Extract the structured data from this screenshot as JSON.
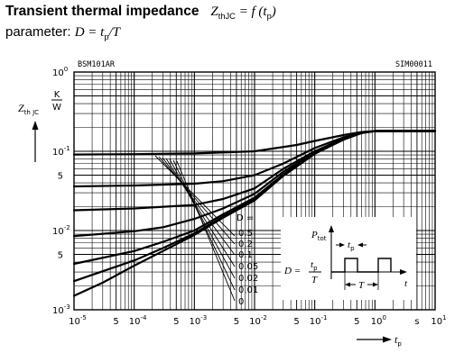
{
  "header": {
    "title": "Transient thermal impedance",
    "formula_lhs": "Z",
    "formula_lhs_sub": "thJC",
    "formula_rhs": " = f (t",
    "formula_rhs_sub": "p",
    "formula_close": ")",
    "param_label": "parameter:",
    "param_formula": "D = t",
    "param_formula_sub": "p",
    "param_formula_tail": "/T"
  },
  "chart_data": {
    "type": "line",
    "device_label": "BSM101AR",
    "figure_id": "SIM00011",
    "xscale": "log",
    "yscale": "log",
    "xlim": [
      1e-05,
      10
    ],
    "ylim": [
      0.001,
      1
    ],
    "x_unit": "s",
    "x_symbol": "t",
    "x_symbol_sub": "p",
    "y_symbol": "Z",
    "y_symbol_sub": "th JC",
    "y_unit_num": "K",
    "y_unit_den": "W",
    "x_ticks": [
      {
        "base": "10",
        "exp": "-5",
        "value": 1e-05
      },
      {
        "base": "5",
        "exp": "",
        "value": 5e-05
      },
      {
        "base": "10",
        "exp": "-4",
        "value": 0.0001
      },
      {
        "base": "5",
        "exp": "",
        "value": 0.0005
      },
      {
        "base": "10",
        "exp": "-3",
        "value": 0.001
      },
      {
        "base": "5",
        "exp": "",
        "value": 0.005
      },
      {
        "base": "10",
        "exp": "-2",
        "value": 0.01
      },
      {
        "base": "5",
        "exp": "",
        "value": 0.05
      },
      {
        "base": "10",
        "exp": "-1",
        "value": 0.1
      },
      {
        "base": "5",
        "exp": "",
        "value": 0.5
      },
      {
        "base": "10",
        "exp": "0",
        "value": 1
      },
      {
        "base": "s",
        "exp": "",
        "value": 5
      },
      {
        "base": "10",
        "exp": "1",
        "value": 10
      }
    ],
    "y_ticks": [
      {
        "base": "10",
        "exp": "0",
        "value": 1
      },
      {
        "base": "10",
        "exp": "-1",
        "value": 0.1
      },
      {
        "base": "5",
        "exp": "",
        "value": 0.05
      },
      {
        "base": "10",
        "exp": "-2",
        "value": 0.01
      },
      {
        "base": "5",
        "exp": "",
        "value": 0.005
      },
      {
        "base": "10",
        "exp": "-3",
        "value": 0.001
      }
    ],
    "legend_title": "D =",
    "series": [
      {
        "name": "0.5",
        "x": [
          1e-05,
          0.0001,
          0.001,
          0.01,
          0.05,
          0.1,
          0.3,
          0.6,
          1,
          10
        ],
        "y": [
          0.091,
          0.092,
          0.094,
          0.1,
          0.12,
          0.135,
          0.16,
          0.175,
          0.18,
          0.18
        ]
      },
      {
        "name": "0.2",
        "x": [
          1e-05,
          0.0001,
          0.001,
          0.003,
          0.01,
          0.03,
          0.1,
          0.3,
          0.6,
          1,
          10
        ],
        "y": [
          0.036,
          0.037,
          0.039,
          0.042,
          0.05,
          0.07,
          0.11,
          0.15,
          0.17,
          0.18,
          0.18
        ]
      },
      {
        "name": "0.1",
        "x": [
          1e-05,
          0.0001,
          0.001,
          0.003,
          0.01,
          0.03,
          0.1,
          0.3,
          0.6,
          1,
          10
        ],
        "y": [
          0.018,
          0.019,
          0.021,
          0.025,
          0.034,
          0.06,
          0.1,
          0.145,
          0.17,
          0.18,
          0.18
        ]
      },
      {
        "name": "0.05",
        "x": [
          1e-05,
          0.0001,
          0.0003,
          0.001,
          0.003,
          0.01,
          0.03,
          0.1,
          0.3,
          0.6,
          1,
          10
        ],
        "y": [
          0.0085,
          0.0098,
          0.011,
          0.014,
          0.019,
          0.029,
          0.055,
          0.097,
          0.143,
          0.17,
          0.18,
          0.18
        ]
      },
      {
        "name": "0.02",
        "x": [
          1e-05,
          0.0001,
          0.0003,
          0.001,
          0.003,
          0.01,
          0.03,
          0.1,
          0.3,
          0.6,
          1,
          10
        ],
        "y": [
          0.0038,
          0.0055,
          0.0072,
          0.01,
          0.016,
          0.026,
          0.051,
          0.095,
          0.142,
          0.17,
          0.18,
          0.18
        ]
      },
      {
        "name": "0.01",
        "x": [
          1e-05,
          0.0001,
          0.0003,
          0.001,
          0.003,
          0.01,
          0.03,
          0.1,
          0.3,
          0.6,
          1,
          10
        ],
        "y": [
          0.0023,
          0.0042,
          0.006,
          0.0092,
          0.015,
          0.025,
          0.05,
          0.094,
          0.141,
          0.17,
          0.18,
          0.18
        ]
      },
      {
        "name": "0",
        "x": [
          1e-05,
          3e-05,
          0.0001,
          0.0003,
          0.001,
          0.003,
          0.01,
          0.03,
          0.1,
          0.3,
          0.6,
          1,
          10
        ],
        "y": [
          0.0015,
          0.0022,
          0.0036,
          0.0055,
          0.0088,
          0.0145,
          0.024,
          0.049,
          0.093,
          0.14,
          0.17,
          0.18,
          0.18
        ]
      }
    ],
    "inset": {
      "power_label": "P",
      "power_label_sub": "tot",
      "pulse_label": "t",
      "pulse_label_sub": "p",
      "period_label": "T",
      "time_label": "t",
      "eq_lhs": "D =",
      "eq_num": "t",
      "eq_num_sub": "p",
      "eq_den": "T"
    }
  }
}
